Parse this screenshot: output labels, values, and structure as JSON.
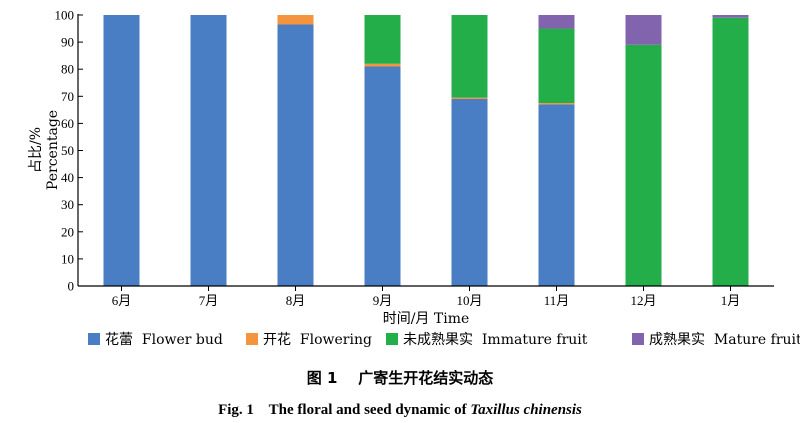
{
  "chart_data": {
    "type": "bar",
    "stacked": true,
    "categories": [
      "6月",
      "7月",
      "8月",
      "9月",
      "10月",
      "11月",
      "12月",
      "1月"
    ],
    "series": [
      {
        "name": "花蕾  Flower bud",
        "color": "#4A7EC4",
        "values": [
          100,
          100,
          96.5,
          81,
          69,
          67,
          0,
          0
        ]
      },
      {
        "name": "开花  Flowering",
        "color": "#F5943E",
        "values": [
          0,
          0,
          3.5,
          1,
          0.5,
          0.5,
          0,
          0
        ]
      },
      {
        "name": "未成熟果实  Immature fruit",
        "color": "#23AE4A",
        "values": [
          0,
          0,
          0,
          18,
          30.5,
          27.5,
          89,
          99
        ]
      },
      {
        "name": "成熟果实  Mature fruit",
        "color": "#8264AE",
        "values": [
          0,
          0,
          0,
          0,
          0,
          5,
          11,
          1
        ]
      }
    ],
    "ylim": [
      0,
      100
    ],
    "yticks": [
      0,
      10,
      20,
      30,
      40,
      50,
      60,
      70,
      80,
      90,
      100
    ],
    "ylabel_cn": "占比/%",
    "ylabel_en": "Percentage",
    "xlabel": "时间/月  Time",
    "legend_position": "bottom"
  },
  "caption": {
    "cn": "图 1    广寄生开花结实动态",
    "en_prefix": "Fig. 1    The floral and seed dynamic of ",
    "en_species": "Taxillus chinensis"
  }
}
